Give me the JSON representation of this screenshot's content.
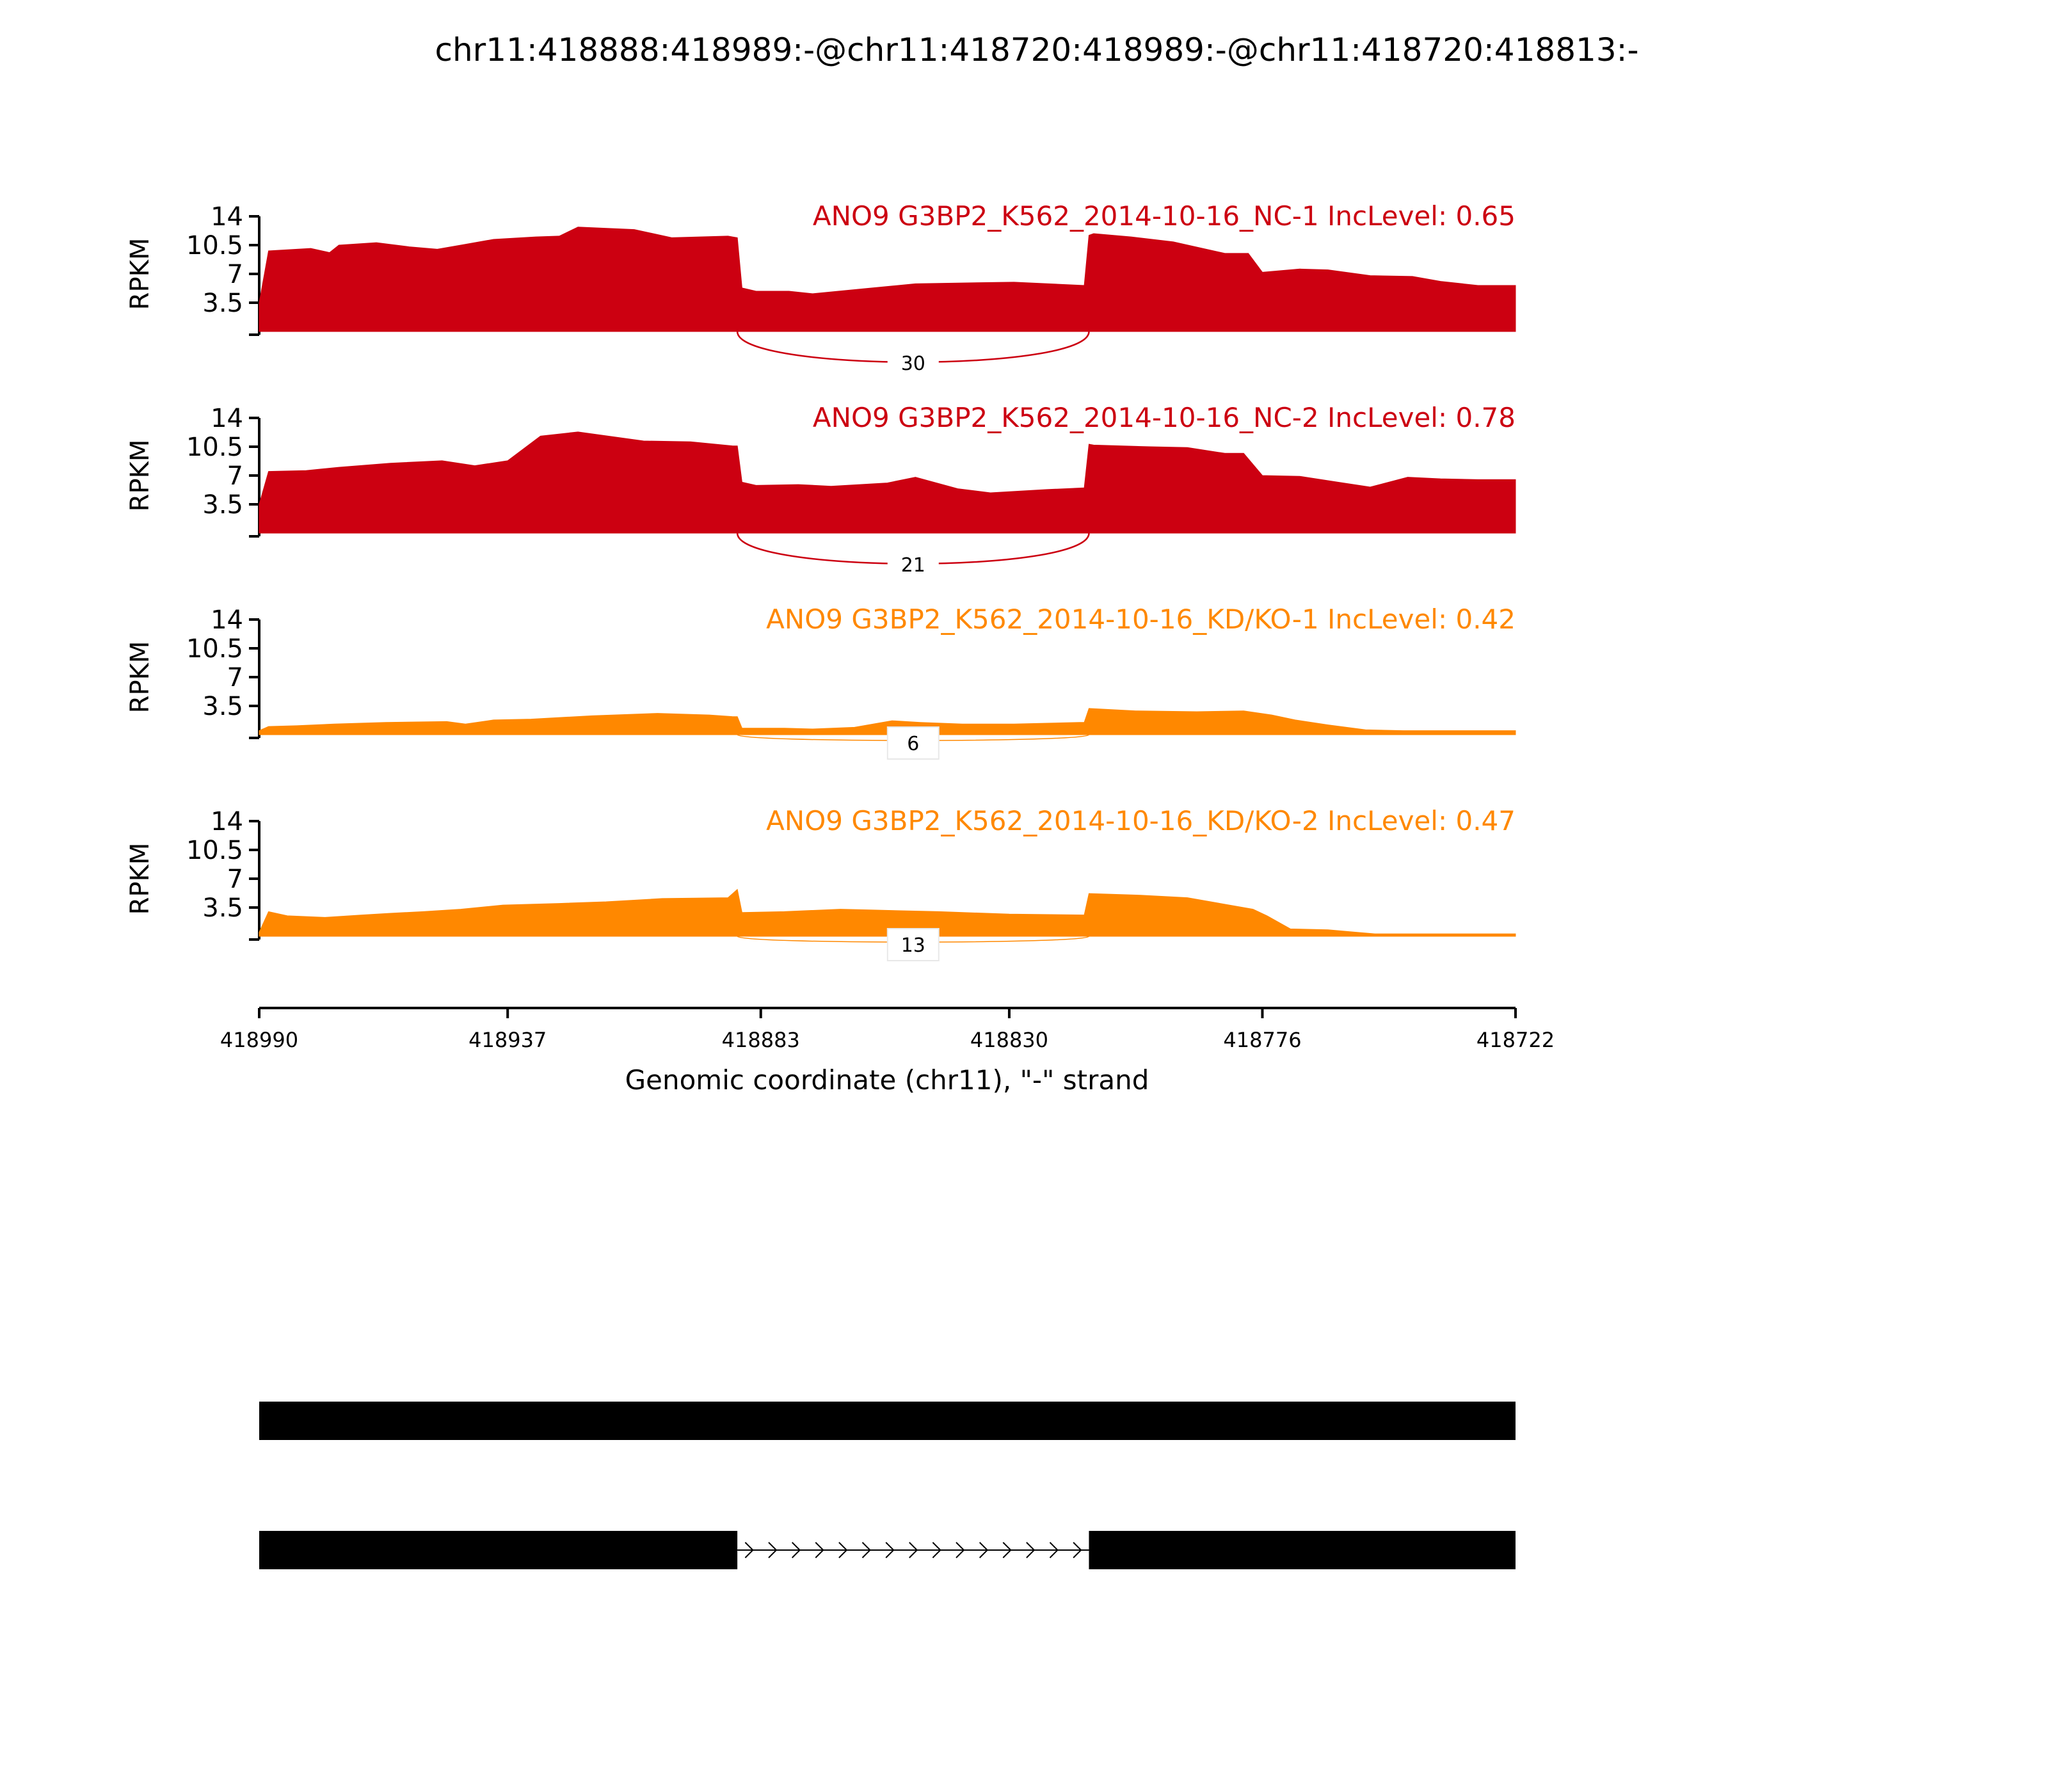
{
  "chart_data": {
    "type": "area",
    "title": "chr11:418888:418989:-@chr11:418720:418989:-@chr11:418720:418813:-",
    "ylabel": "RPKM",
    "yticks": [
      "3.5",
      "7",
      "10.5",
      "14"
    ],
    "ylim": [
      0,
      14
    ],
    "xlabel": "Genomic coordinate (chr11), \"-\" strand",
    "xlim": [
      418990,
      418722
    ],
    "xticks": [
      "418990",
      "418937",
      "418883",
      "418830",
      "418776",
      "418722"
    ],
    "colors": {
      "NC": "#cc0011",
      "KD": "#ff8800"
    },
    "panels": [
      {
        "label": "ANO9 G3BP2_K562_2014-10-16_NC-1 IncLevel: 0.65",
        "color": "#cc0011",
        "junction": "30",
        "x": [
          418990,
          418988,
          418979,
          418975,
          418973,
          418965,
          418958,
          418952,
          418947,
          418940,
          418931,
          418926,
          418922,
          418910,
          418902,
          418890,
          418888,
          418887,
          418884,
          418877,
          418872,
          418861,
          418850,
          418840,
          418829,
          418814,
          418813,
          418812,
          418804,
          418795,
          418784,
          418779,
          418776,
          418768,
          418762,
          418753,
          418744,
          418738,
          418730,
          418722
        ],
        "y": [
          3.5,
          9.8,
          10.1,
          9.6,
          10.5,
          10.8,
          10.3,
          10.0,
          10.5,
          11.2,
          11.5,
          11.6,
          12.7,
          12.4,
          11.4,
          11.6,
          11.4,
          5.3,
          4.9,
          4.9,
          4.6,
          5.2,
          5.8,
          5.9,
          6.0,
          5.6,
          11.7,
          11.9,
          11.5,
          10.9,
          9.5,
          9.5,
          7.2,
          7.6,
          7.5,
          6.8,
          6.7,
          6.1,
          5.6,
          5.6
        ]
      },
      {
        "label": "ANO9 G3BP2_K562_2014-10-16_NC-2 IncLevel: 0.78",
        "color": "#cc0011",
        "junction": "21",
        "x": [
          418990,
          418988,
          418980,
          418973,
          418962,
          418951,
          418944,
          418937,
          418930,
          418922,
          418908,
          418898,
          418889,
          418888,
          418887,
          418884,
          418875,
          418868,
          418856,
          418850,
          418841,
          418834,
          418822,
          418814,
          418813,
          418812,
          418800,
          418792,
          418784,
          418780,
          418776,
          418768,
          418760,
          418753,
          418745,
          418738,
          418730,
          418722
        ],
        "y": [
          3.5,
          7.5,
          7.6,
          8.0,
          8.5,
          8.8,
          8.2,
          8.8,
          11.8,
          12.3,
          11.2,
          11.1,
          10.6,
          10.6,
          6.2,
          5.8,
          5.9,
          5.7,
          6.1,
          6.8,
          5.4,
          4.9,
          5.3,
          5.5,
          10.8,
          10.7,
          10.5,
          10.4,
          9.7,
          9.7,
          7.0,
          6.9,
          6.2,
          5.6,
          6.8,
          6.6,
          6.5,
          6.5
        ]
      },
      {
        "label": "ANO9 G3BP2_K562_2014-10-16_KD/KO-1 IncLevel: 0.42",
        "color": "#ff8800",
        "junction": "6",
        "x": [
          418990,
          418988,
          418982,
          418974,
          418963,
          418950,
          418946,
          418940,
          418932,
          418919,
          418905,
          418894,
          418889,
          418888,
          418887,
          418878,
          418872,
          418863,
          418859,
          418855,
          418849,
          418840,
          418829,
          418815,
          418814,
          418813,
          418803,
          418790,
          418780,
          418774,
          418769,
          418762,
          418754,
          418746,
          418738,
          418722
        ],
        "y": [
          0.5,
          1.0,
          1.1,
          1.3,
          1.5,
          1.6,
          1.3,
          1.8,
          1.9,
          2.3,
          2.6,
          2.4,
          2.2,
          2.2,
          0.8,
          0.8,
          0.7,
          0.9,
          1.3,
          1.7,
          1.5,
          1.3,
          1.3,
          1.5,
          1.5,
          3.2,
          2.9,
          2.8,
          2.9,
          2.4,
          1.8,
          1.2,
          0.6,
          0.5,
          0.5,
          0.5
        ]
      },
      {
        "label": "ANO9 G3BP2_K562_2014-10-16_KD/KO-2 IncLevel: 0.47",
        "color": "#ff8800",
        "junction": "13",
        "x": [
          418990,
          418988,
          418984,
          418976,
          418968,
          418962,
          418955,
          418947,
          418938,
          418926,
          418916,
          418904,
          418890,
          418888,
          418887,
          418878,
          418866,
          418859,
          418845,
          418830,
          418814,
          418813,
          418802,
          418792,
          418778,
          418775,
          418770,
          418762,
          418756,
          418752,
          418748,
          418722
        ],
        "y": [
          0.5,
          3.0,
          2.5,
          2.3,
          2.6,
          2.8,
          3.0,
          3.3,
          3.8,
          4.0,
          4.2,
          4.6,
          4.7,
          5.7,
          2.9,
          3.0,
          3.3,
          3.2,
          3.0,
          2.7,
          2.6,
          5.2,
          5.0,
          4.7,
          3.3,
          2.5,
          0.9,
          0.8,
          0.5,
          0.3,
          0.3,
          0.3
        ]
      }
    ],
    "junction_span": [
      418888,
      418813
    ],
    "isoforms": [
      {
        "exons": [
          [
            418990,
            418722
          ]
        ]
      },
      {
        "exons": [
          [
            418990,
            418888
          ],
          [
            418813,
            418722
          ]
        ],
        "intron": [
          418888,
          418813
        ]
      }
    ]
  }
}
